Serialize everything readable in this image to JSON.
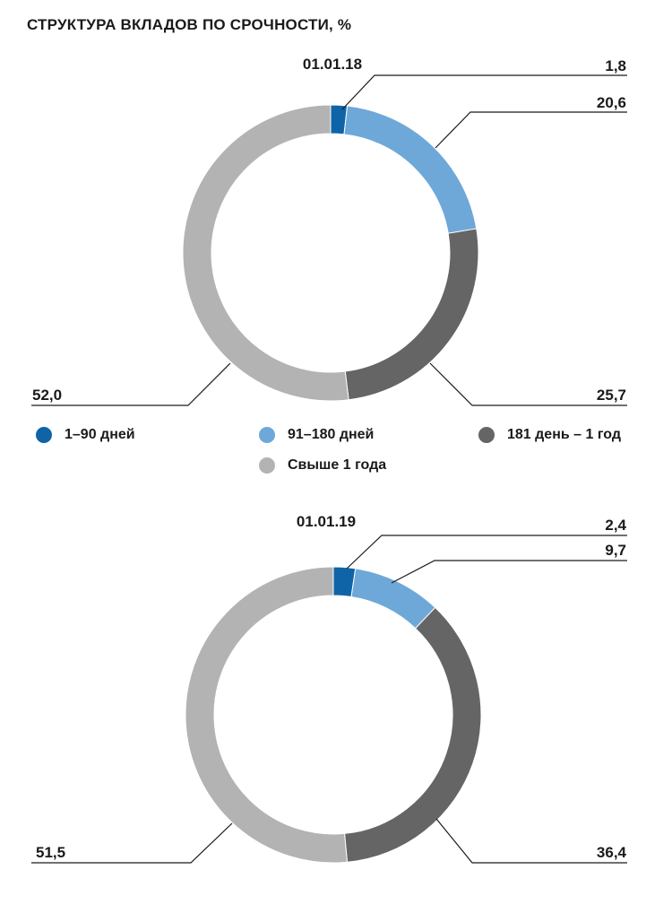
{
  "title": "СТРУКТУРА ВКЛАДОВ ПО СРОЧНОСТИ, %",
  "legend": [
    {
      "label": "1–90 дней",
      "color": "#0e64a6"
    },
    {
      "label": "91–180 дней",
      "color": "#6ea8d8"
    },
    {
      "label": "181 день – 1 год",
      "color": "#666566"
    },
    {
      "label": "Свыше 1 года",
      "color": "#b3b3b3"
    }
  ],
  "chart_data": [
    {
      "type": "pie",
      "title": "01.01.18",
      "categories": [
        "1–90 дней",
        "91–180 дней",
        "181 день – 1 год",
        "Свыше 1 года"
      ],
      "values": [
        1.8,
        20.6,
        25.7,
        52.0
      ],
      "value_labels": [
        "1,8",
        "20,6",
        "25,7",
        "52,0"
      ],
      "colors": [
        "#0e64a6",
        "#6ea8d8",
        "#666566",
        "#b3b3b3"
      ]
    },
    {
      "type": "pie",
      "title": "01.01.19",
      "categories": [
        "1–90 дней",
        "91–180 дней",
        "181 день – 1 год",
        "Свыше 1 года"
      ],
      "values": [
        2.4,
        9.7,
        36.4,
        51.5
      ],
      "value_labels": [
        "2,4",
        "9,7",
        "36,4",
        "51,5"
      ],
      "colors": [
        "#0e64a6",
        "#6ea8d8",
        "#666566",
        "#b3b3b3"
      ]
    }
  ]
}
